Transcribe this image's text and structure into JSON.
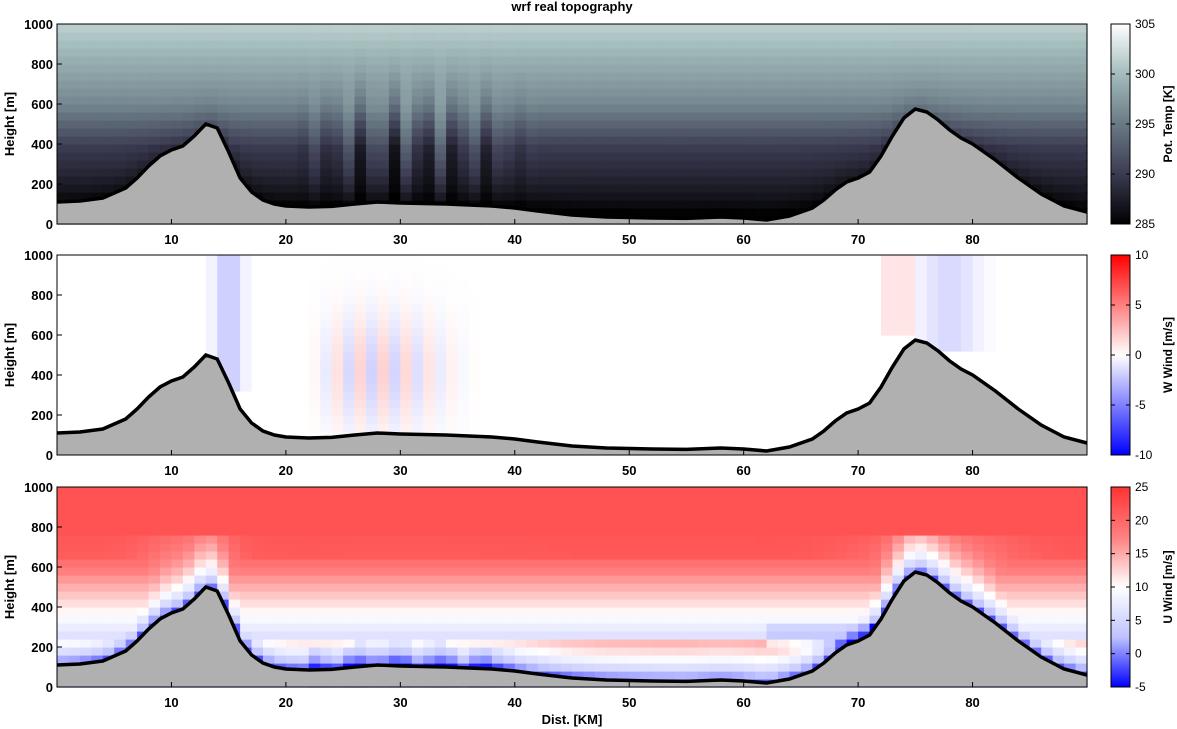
{
  "figure_title": "wrf real topography",
  "chart_data": [
    {
      "type": "heatmap",
      "panel": "potential-temperature",
      "title": "wrf real topography",
      "xlabel": "",
      "ylabel": "Height [m]",
      "xlim": [
        0,
        90
      ],
      "ylim": [
        0,
        1000
      ],
      "xticks": [
        10,
        20,
        30,
        40,
        50,
        60,
        70,
        80
      ],
      "yticks": [
        0,
        200,
        400,
        600,
        800,
        1000
      ],
      "colorbar": {
        "label": "Pot. Temp [K]",
        "range": [
          285,
          305
        ],
        "ticks": [
          285,
          290,
          295,
          300,
          305
        ],
        "colors": [
          "#000000",
          "#3b3b52",
          "#6a7a85",
          "#a3bcbc",
          "#ffffff"
        ]
      },
      "field_description": "stable layer; cold near ground, warmer aloft, wave oscillations between 22 and 40 km"
    },
    {
      "type": "heatmap",
      "panel": "vertical-wind",
      "xlabel": "",
      "ylabel": "Height [m]",
      "xlim": [
        0,
        90
      ],
      "ylim": [
        0,
        1000
      ],
      "xticks": [
        10,
        20,
        30,
        40,
        50,
        60,
        70,
        80
      ],
      "yticks": [
        0,
        200,
        400,
        600,
        800,
        1000
      ],
      "colorbar": {
        "label": "W Wind [m/s]",
        "range": [
          -10,
          10
        ],
        "ticks": [
          -10,
          -5,
          0,
          5,
          10
        ],
        "colors": [
          "#0000ff",
          "#ffffff",
          "#ff0000"
        ]
      }
    },
    {
      "type": "heatmap",
      "panel": "horizontal-wind",
      "xlabel": "Dist. [KM]",
      "ylabel": "Height [m]",
      "xlim": [
        0,
        90
      ],
      "ylim": [
        0,
        1000
      ],
      "xticks": [
        10,
        20,
        30,
        40,
        50,
        60,
        70,
        80
      ],
      "yticks": [
        0,
        200,
        400,
        600,
        800,
        1000
      ],
      "colorbar": {
        "label": "U Wind [m/s]",
        "range": [
          -5,
          25
        ],
        "ticks": [
          -5,
          0,
          5,
          10,
          15,
          20,
          25
        ],
        "colors": [
          "#0000ff",
          "#bfc3ff",
          "#ffffff",
          "#ff8080",
          "#ff3333"
        ]
      }
    }
  ],
  "topography": {
    "x": [
      0,
      2,
      4,
      6,
      7,
      8,
      9,
      10,
      11,
      12,
      13,
      14,
      15,
      16,
      17,
      18,
      19,
      20,
      22,
      24,
      26,
      28,
      30,
      34,
      38,
      40,
      42,
      45,
      48,
      52,
      55,
      58,
      60,
      62,
      64,
      66,
      67,
      68,
      69,
      70,
      71,
      72,
      73,
      74,
      75,
      76,
      77,
      78,
      79,
      80,
      82,
      84,
      86,
      88,
      90
    ],
    "y": [
      110,
      115,
      130,
      180,
      230,
      290,
      340,
      370,
      390,
      440,
      500,
      480,
      360,
      230,
      160,
      120,
      100,
      90,
      85,
      88,
      100,
      110,
      105,
      100,
      90,
      80,
      65,
      45,
      35,
      30,
      28,
      35,
      30,
      20,
      40,
      80,
      120,
      170,
      210,
      230,
      260,
      340,
      440,
      530,
      575,
      560,
      520,
      470,
      430,
      400,
      320,
      230,
      150,
      90,
      60
    ]
  }
}
